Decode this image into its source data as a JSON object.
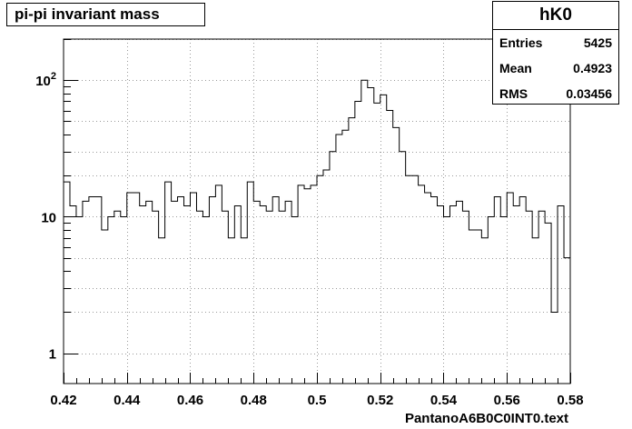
{
  "title": "pi-pi invariant mass",
  "stats": {
    "name": "hK0",
    "rows": [
      {
        "label": "Entries",
        "value": "5425"
      },
      {
        "label": "Mean",
        "value": "0.4923"
      },
      {
        "label": "RMS",
        "value": "0.03456"
      }
    ]
  },
  "chart_data": {
    "type": "histogram",
    "title": "pi-pi invariant mass",
    "xlabel": "PantanoA6B0C0INT0.text",
    "ylabel": "",
    "xlim": [
      0.42,
      0.58
    ],
    "ylim": [
      0.6,
      200
    ],
    "log_y": true,
    "grid": true,
    "x_ticks": [
      "0.42",
      "0.44",
      "0.46",
      "0.48",
      "0.5",
      "0.52",
      "0.54",
      "0.56",
      "0.58"
    ],
    "y_ticks": [
      "1",
      "10",
      "10^2"
    ],
    "bin_low_edges": [
      0.42,
      0.422,
      0.424,
      0.426,
      0.428,
      0.43,
      0.432,
      0.434,
      0.436,
      0.438,
      0.44,
      0.442,
      0.444,
      0.446,
      0.448,
      0.45,
      0.452,
      0.454,
      0.456,
      0.458,
      0.46,
      0.462,
      0.464,
      0.466,
      0.468,
      0.47,
      0.472,
      0.474,
      0.476,
      0.478,
      0.48,
      0.482,
      0.484,
      0.486,
      0.488,
      0.49,
      0.492,
      0.494,
      0.496,
      0.498,
      0.5,
      0.502,
      0.504,
      0.506,
      0.508,
      0.51,
      0.512,
      0.514,
      0.516,
      0.518,
      0.52,
      0.522,
      0.524,
      0.526,
      0.528,
      0.53,
      0.532,
      0.534,
      0.536,
      0.538,
      0.54,
      0.542,
      0.544,
      0.546,
      0.548,
      0.55,
      0.552,
      0.554,
      0.556,
      0.558,
      0.56,
      0.562,
      0.564,
      0.566,
      0.568,
      0.57,
      0.572,
      0.574,
      0.576,
      0.578
    ],
    "counts": [
      18,
      12,
      10,
      13,
      14,
      14,
      8,
      10,
      11,
      10,
      15,
      15,
      12,
      13,
      11,
      7,
      18,
      13,
      14,
      12,
      15,
      11,
      10,
      14,
      17,
      11,
      7,
      12,
      7,
      18,
      13,
      12,
      11,
      14,
      11,
      13,
      10,
      17,
      16,
      17,
      20,
      22,
      30,
      40,
      43,
      53,
      70,
      100,
      88,
      68,
      78,
      60,
      45,
      30,
      20,
      20,
      17,
      15,
      14,
      12,
      10,
      12,
      13,
      11,
      8,
      8,
      7,
      10,
      14,
      10,
      15,
      12,
      14,
      11,
      7,
      11,
      9,
      2,
      12,
      5
    ]
  }
}
